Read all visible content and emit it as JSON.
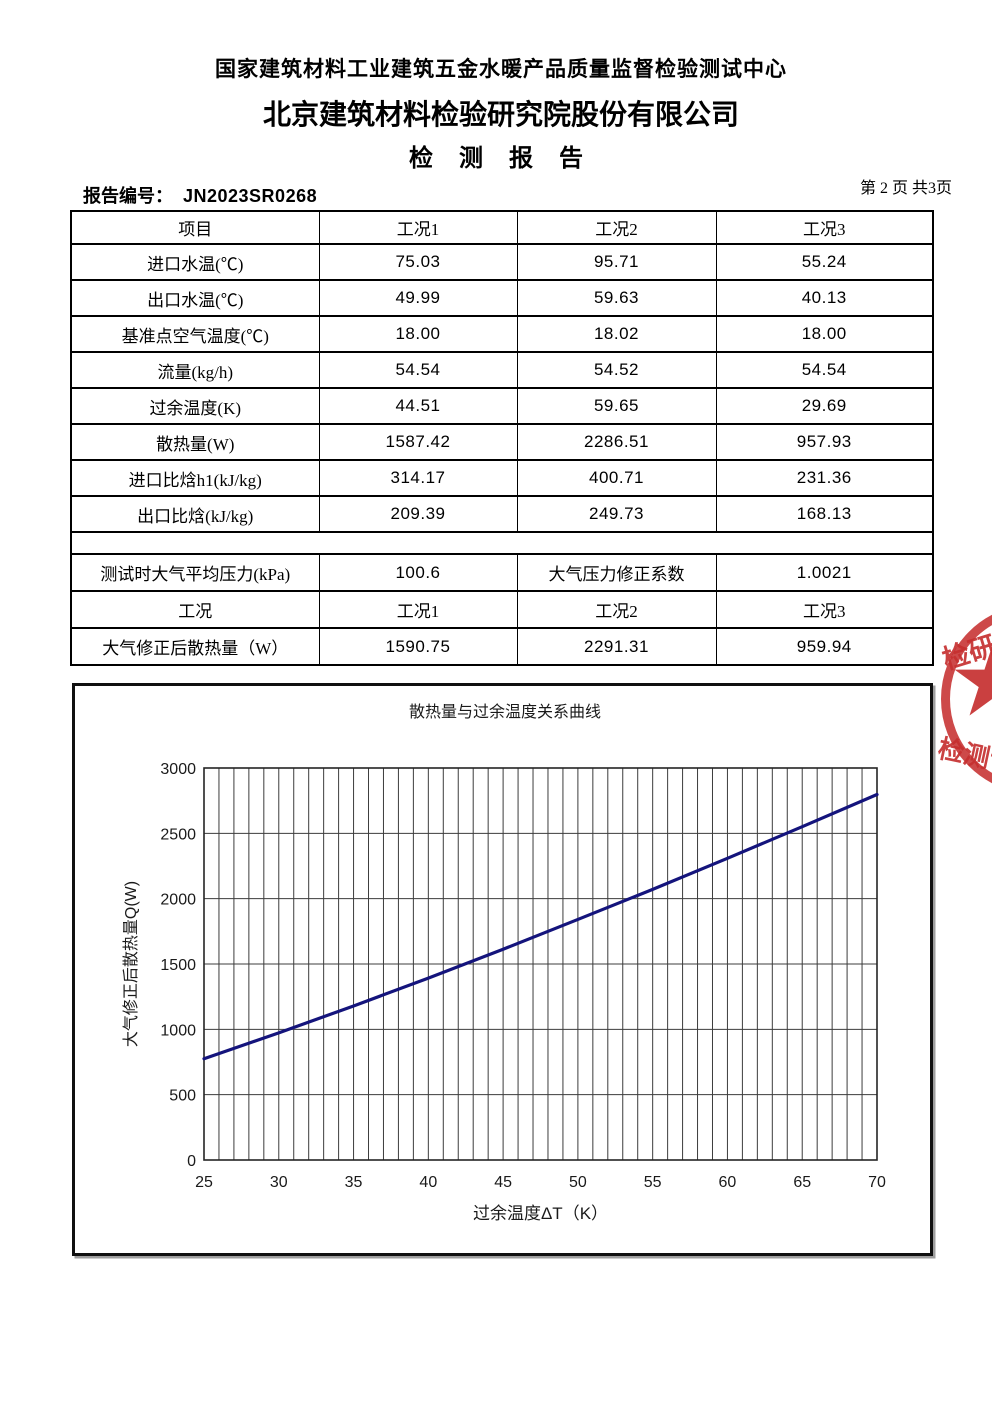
{
  "header": {
    "center_name": "国家建筑材料工业建筑五金水暖产品质量监督检验测试中心",
    "company_name": "北京建筑材料检验研究院股份有限公司",
    "report_title": "检 测 报 告",
    "report_no_label": "报告编号：",
    "report_no": "JN2023SR0268",
    "page_info": "第 2 页 共3页"
  },
  "table": {
    "headers": [
      "项目",
      "工况1",
      "工况2",
      "工况3"
    ],
    "rows1": [
      [
        "进口水温(℃)",
        "75.03",
        "95.71",
        "55.24"
      ],
      [
        "出口水温(℃)",
        "49.99",
        "59.63",
        "40.13"
      ],
      [
        "基准点空气温度(℃)",
        "18.00",
        "18.02",
        "18.00"
      ],
      [
        "流量(kg/h)",
        "54.54",
        "54.52",
        "54.54"
      ],
      [
        "过余温度(K)",
        "44.51",
        "59.65",
        "29.69"
      ],
      [
        "散热量(W)",
        "1587.42",
        "2286.51",
        "957.93"
      ],
      [
        "进口比焓h1(kJ/kg)",
        "314.17",
        "400.71",
        "231.36"
      ],
      [
        "出口比焓(kJ/kg)",
        "209.39",
        "249.73",
        "168.13"
      ]
    ],
    "rows2": [
      [
        "测试时大气平均压力(kPa)",
        "100.6",
        "大气压力修正系数",
        "1.0021"
      ],
      [
        "工况",
        "工况1",
        "工况2",
        "工况3"
      ],
      [
        "大气修正后散热量（W）",
        "1590.75",
        "2291.31",
        "959.94"
      ]
    ]
  },
  "chart_data": {
    "type": "line",
    "title": "散热量与过余温度关系曲线",
    "xlabel": "过余温度ΔT（K）",
    "ylabel": "大气修正后散热量Q(W)",
    "xlim": [
      25,
      70
    ],
    "ylim": [
      0,
      3000
    ],
    "x_ticks": [
      25,
      30,
      35,
      40,
      45,
      50,
      55,
      60,
      65,
      70
    ],
    "y_ticks": [
      0,
      500,
      1000,
      1500,
      2000,
      2500,
      3000
    ],
    "x_minor_step": 1,
    "grid": "vertical gridlines every 1 K, horizontal gridlines every 500 W",
    "legend": "none",
    "line_color": "#14147c",
    "series": [
      {
        "name": "大气修正后散热量",
        "x": [
          25,
          30,
          35,
          40,
          45,
          50,
          55,
          60,
          65,
          70
        ],
        "y": [
          775,
          973,
          1179,
          1392,
          1613,
          1841,
          2071,
          2309,
          2551,
          2797
        ]
      }
    ],
    "reference_points": [
      {
        "dT": 29.69,
        "Q": 959.94
      },
      {
        "dT": 44.51,
        "Q": 1590.75
      },
      {
        "dT": 59.65,
        "Q": 2291.31
      }
    ]
  },
  "stamp": {
    "top_text": "检研究",
    "bottom_text": "检测专",
    "star": "★",
    "color": "#c63030"
  }
}
